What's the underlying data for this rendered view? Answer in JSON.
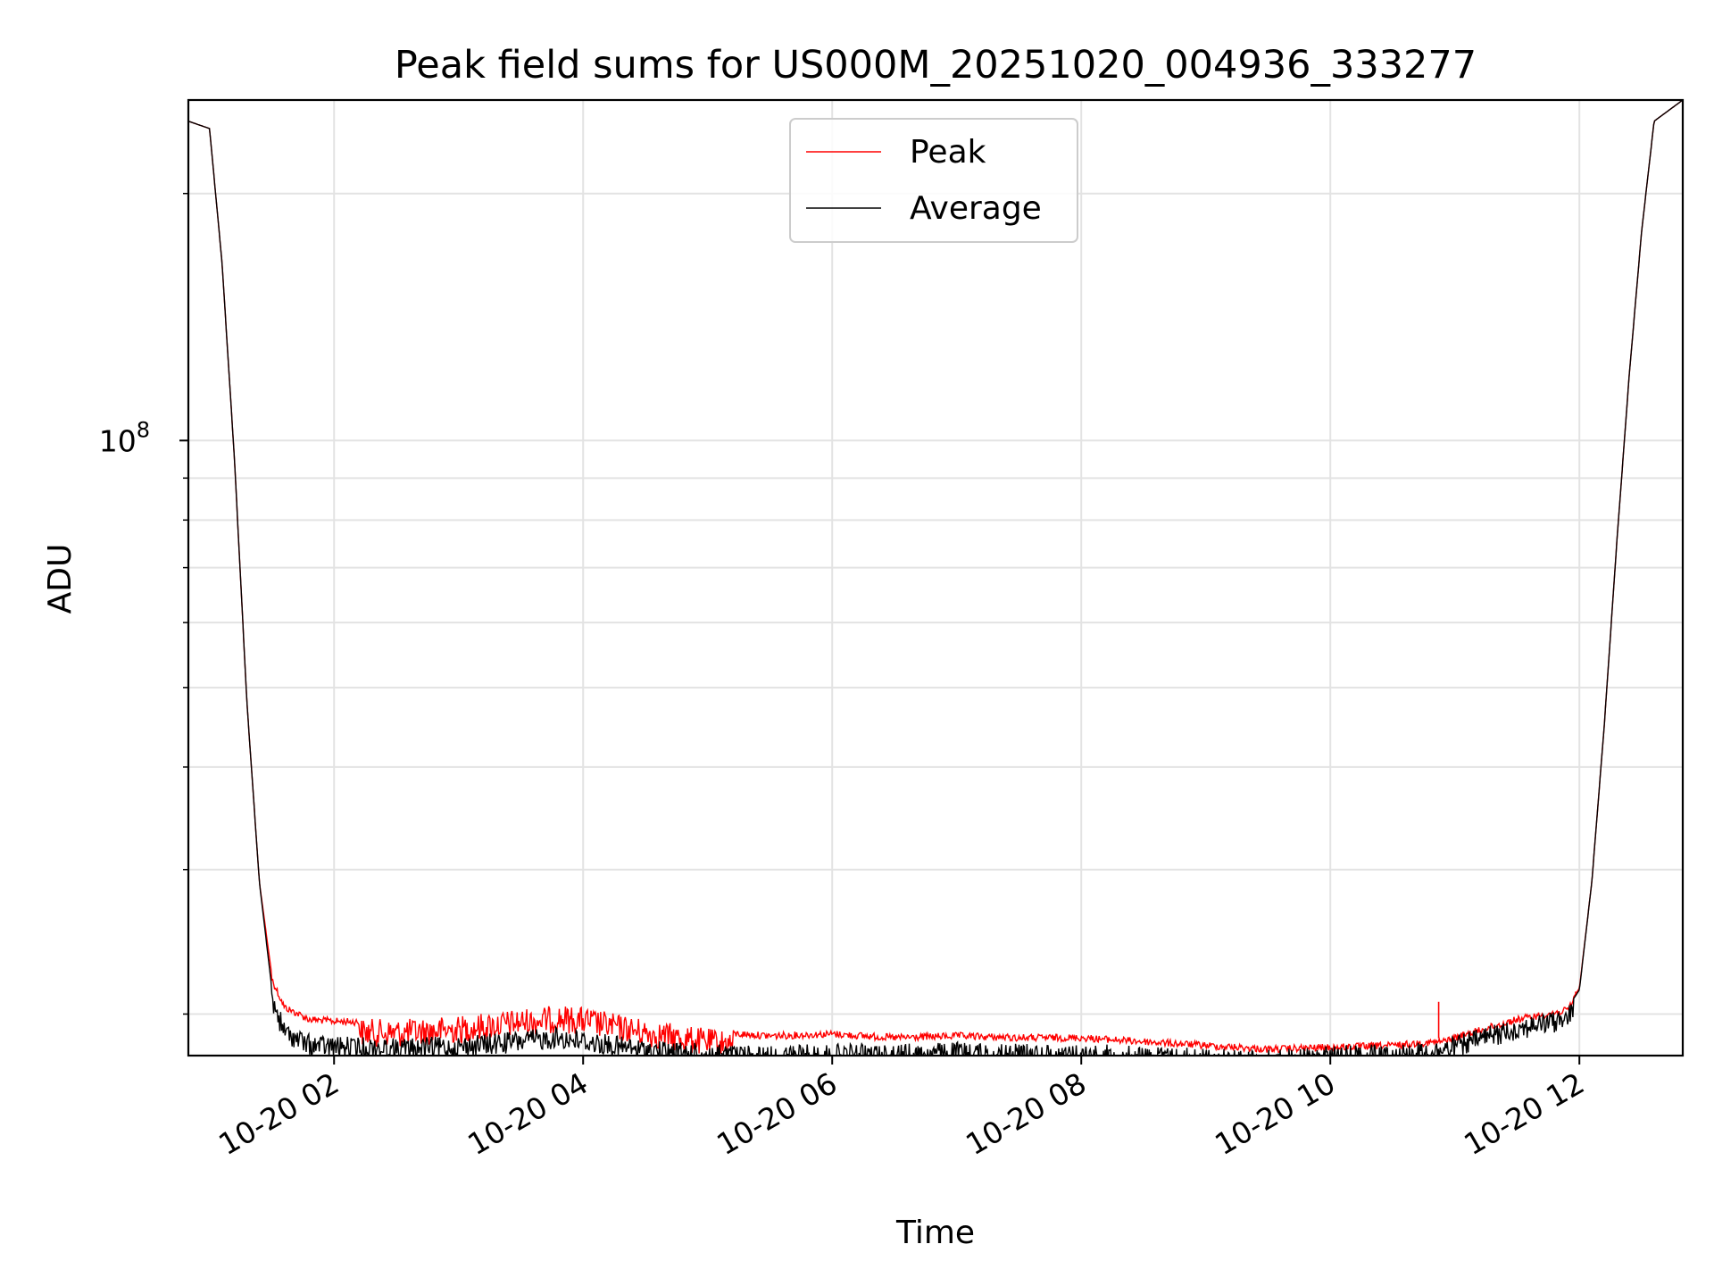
{
  "chart_data": {
    "type": "line",
    "title": "Peak field sums for US000M_20251020_004936_333277",
    "xlabel": "Time",
    "ylabel": "ADU",
    "y_scale": "log",
    "y_tick_major": {
      "value": 100000000,
      "label_base": "10",
      "label_exp": "8"
    },
    "ylim": [
      17800000,
      260000000
    ],
    "x_tick_labels": [
      "10-20 02",
      "10-20 04",
      "10-20 06",
      "10-20 08",
      "10-20 10",
      "10-20 12"
    ],
    "x_tick_hours": [
      2,
      4,
      6,
      8,
      10,
      12
    ],
    "xlim_hours": [
      0.83,
      12.83
    ],
    "grid": true,
    "legend_position": "top-center",
    "series": [
      {
        "name": "Peak",
        "color": "#ff0000",
        "x_hours": [
          0.83,
          1.0,
          1.1,
          1.2,
          1.3,
          1.4,
          1.5,
          1.6,
          1.8,
          2.0,
          2.5,
          3.0,
          3.5,
          3.8,
          4.0,
          4.5,
          5.0,
          5.5,
          6.0,
          6.5,
          7.0,
          7.5,
          8.0,
          8.5,
          9.0,
          9.5,
          10.0,
          10.5,
          10.9,
          11.2,
          11.5,
          11.9,
          12.0,
          12.1,
          12.2,
          12.3,
          12.4,
          12.5,
          12.6,
          12.83
        ],
        "values": [
          245000000,
          240000000,
          165000000,
          95000000,
          48000000,
          29000000,
          22300000,
          20600000,
          19900000,
          19800000,
          19700000,
          19900000,
          20300000,
          20500000,
          20400000,
          19700000,
          19200000,
          19000000,
          19100000,
          18900000,
          19000000,
          18900000,
          18900000,
          18700000,
          18500000,
          18300000,
          18400000,
          18500000,
          18700000,
          19300000,
          19900000,
          20400000,
          21500000,
          29000000,
          45000000,
          75000000,
          120000000,
          180000000,
          245000000,
          260000000
        ],
        "spikes": [
          {
            "x_hour": 10.87,
            "value": 20700000
          },
          {
            "x_hour": 11.97,
            "value": 21300000
          }
        ]
      },
      {
        "name": "Average",
        "color": "#000000",
        "x_hours": [
          0.83,
          1.0,
          1.1,
          1.2,
          1.3,
          1.4,
          1.5,
          1.6,
          1.8,
          2.0,
          2.5,
          3.0,
          3.5,
          3.8,
          4.0,
          4.5,
          5.0,
          5.5,
          6.0,
          6.5,
          7.0,
          7.5,
          8.0,
          8.5,
          9.0,
          9.5,
          10.0,
          10.5,
          10.9,
          11.2,
          11.5,
          11.9,
          12.0,
          12.1,
          12.2,
          12.3,
          12.4,
          12.5,
          12.6,
          12.83
        ],
        "values": [
          245000000,
          240000000,
          165000000,
          95000000,
          48000000,
          29000000,
          21500000,
          19600000,
          18900000,
          18800000,
          18700000,
          18800000,
          19100000,
          19300000,
          19100000,
          18600000,
          18400000,
          18300000,
          18400000,
          18400000,
          18500000,
          18400000,
          18400000,
          18300000,
          18200000,
          18100000,
          18300000,
          18400000,
          18600000,
          19200000,
          19800000,
          20300000,
          21400000,
          29000000,
          45000000,
          75000000,
          120000000,
          180000000,
          245000000,
          260000000
        ]
      }
    ]
  }
}
